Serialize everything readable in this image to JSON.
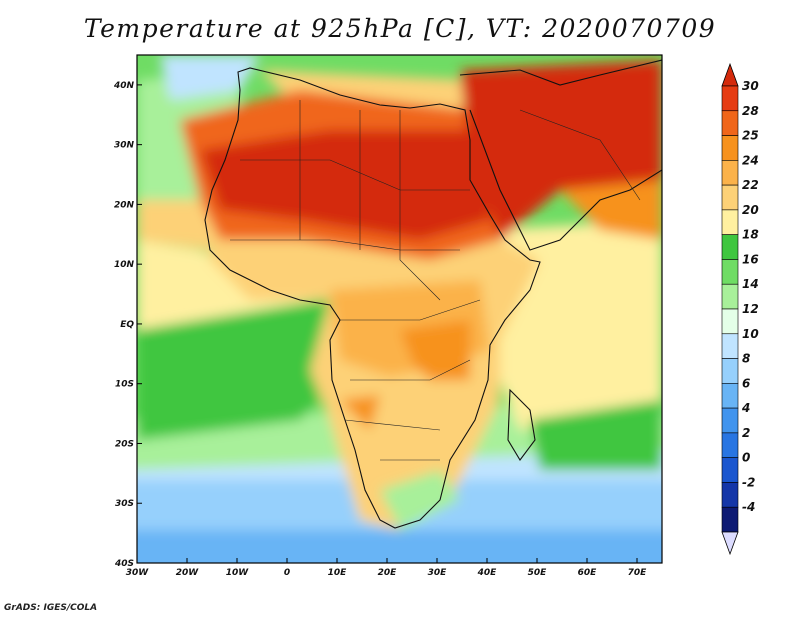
{
  "title": "Temperature at 925hPa [C], VT: 2020070709",
  "credit": "GrADS: IGES/COLA",
  "map": {
    "lon_range": [
      -30,
      75
    ],
    "lat_range": [
      -40,
      45
    ],
    "lon_ticks": [
      {
        "lon": -30,
        "label": "30W"
      },
      {
        "lon": -20,
        "label": "20W"
      },
      {
        "lon": -10,
        "label": "10W"
      },
      {
        "lon": 0,
        "label": "0"
      },
      {
        "lon": 10,
        "label": "10E"
      },
      {
        "lon": 20,
        "label": "20E"
      },
      {
        "lon": 30,
        "label": "30E"
      },
      {
        "lon": 40,
        "label": "40E"
      },
      {
        "lon": 50,
        "label": "50E"
      },
      {
        "lon": 60,
        "label": "60E"
      },
      {
        "lon": 70,
        "label": "70E"
      }
    ],
    "lat_ticks": [
      {
        "lat": 40,
        "label": "40N"
      },
      {
        "lat": 30,
        "label": "30N"
      },
      {
        "lat": 20,
        "label": "20N"
      },
      {
        "lat": 10,
        "label": "10N"
      },
      {
        "lat": 0,
        "label": "EQ"
      },
      {
        "lat": -10,
        "label": "10S"
      },
      {
        "lat": -20,
        "label": "20S"
      },
      {
        "lat": -30,
        "label": "30S"
      },
      {
        "lat": -40,
        "label": "40S"
      }
    ]
  },
  "colorbar": {
    "levels": [
      {
        "label": "30",
        "color": "#e63b12"
      },
      {
        "label": "28",
        "color": "#f0661a"
      },
      {
        "label": "25",
        "color": "#f7921e"
      },
      {
        "label": "24",
        "color": "#fbb24a"
      },
      {
        "label": "22",
        "color": "#fdd177"
      },
      {
        "label": "20",
        "color": "#fff0a0"
      },
      {
        "label": "18",
        "color": "#3fc63f"
      },
      {
        "label": "16",
        "color": "#6fdc64"
      },
      {
        "label": "14",
        "color": "#a8f09a"
      },
      {
        "label": "12",
        "color": "#e4ffe8"
      },
      {
        "label": "10",
        "color": "#c0e4ff"
      },
      {
        "label": "8",
        "color": "#96d0fc"
      },
      {
        "label": "6",
        "color": "#68b4f5"
      },
      {
        "label": "4",
        "color": "#4194ee"
      },
      {
        "label": "2",
        "color": "#2875e2"
      },
      {
        "label": "0",
        "color": "#1a56cf"
      },
      {
        "label": "-2",
        "color": "#1436a8"
      },
      {
        "label": "-4",
        "color": "#0d1a73"
      }
    ],
    "top_color": "#d42a0c",
    "bottom_color": "#dcdcff"
  },
  "palette": {
    "ocean_cold": "#68b4f5",
    "ocean_cool": "#a8f09a",
    "ocean_mid": "#6fdc64",
    "ocean_warm": "#3fc63f",
    "land_warm": "#fdd177",
    "land_hot": "#f0661a",
    "land_veryhot": "#d42a0c"
  }
}
